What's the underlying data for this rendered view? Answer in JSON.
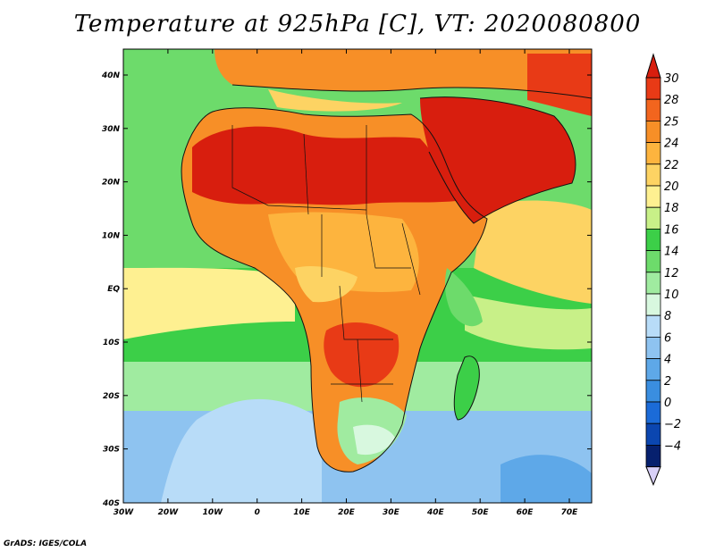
{
  "title": "Temperature at 925hPa [C], VT: 2020080800",
  "credit": "GrADS: IGES/COLA",
  "lat_labels": [
    "40N",
    "30N",
    "20N",
    "10N",
    "EQ",
    "10S",
    "20S",
    "30S",
    "40S"
  ],
  "lon_labels": [
    "30W",
    "20W",
    "10W",
    "0",
    "10E",
    "20E",
    "30E",
    "40E",
    "50E",
    "60E",
    "70E"
  ],
  "colorbar": {
    "labels": [
      "30",
      "28",
      "25",
      "24",
      "22",
      "20",
      "18",
      "16",
      "14",
      "12",
      "10",
      "8",
      "6",
      "4",
      "2",
      "0",
      "−2",
      "−4"
    ],
    "colors": [
      "#e83a16",
      "#f2651e",
      "#f78f27",
      "#fdb43e",
      "#fdd363",
      "#fef091",
      "#c8f088",
      "#3ccf48",
      "#6ddb6b",
      "#a0eba0",
      "#d8f8df",
      "#b8dcf8",
      "#8ec3f0",
      "#5ea8e8",
      "#3a8ee0",
      "#1b6bd8",
      "#0b46b0",
      "#06206e"
    ],
    "top_color": "#d81e0e",
    "bottom_color": "#d8d0f8"
  },
  "map_colors": {
    "ocean_warm": "#fdd363",
    "ocean_mid": "#3ccf48",
    "ocean_cool": "#a0eba0",
    "ocean_cold": "#8ec3f0",
    "land_hot": "#d81e0e",
    "land_warm": "#f2651e",
    "land_mild": "#f78f27"
  }
}
